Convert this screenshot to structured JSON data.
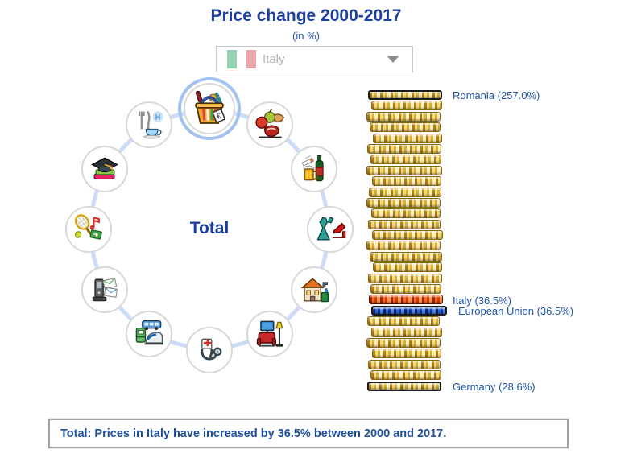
{
  "header": {
    "title": "Price change 2000-2017",
    "subtitle": "(in %)"
  },
  "country_selector": {
    "selected": "Italy",
    "flag_icon": "italy-flag-icon",
    "caret_icon": "chevron-down-icon"
  },
  "category_wheel": {
    "center_label": "Total",
    "selected_category": "total",
    "items": [
      {
        "id": "total",
        "icon": "shopping-basket-icon",
        "selected": true
      },
      {
        "id": "food",
        "icon": "food-icon",
        "selected": false
      },
      {
        "id": "alcohol-tobacco",
        "icon": "alcohol-tobacco-icon",
        "selected": false
      },
      {
        "id": "clothing-footwear",
        "icon": "clothing-icon",
        "selected": false
      },
      {
        "id": "housing-utilities",
        "icon": "housing-icon",
        "selected": false
      },
      {
        "id": "furnishings-household",
        "icon": "furnishings-icon",
        "selected": false
      },
      {
        "id": "health",
        "icon": "health-icon",
        "selected": false
      },
      {
        "id": "transport",
        "icon": "transport-icon",
        "selected": false
      },
      {
        "id": "communication",
        "icon": "communication-icon",
        "selected": false
      },
      {
        "id": "recreation-culture",
        "icon": "recreation-icon",
        "selected": false
      },
      {
        "id": "education",
        "icon": "education-icon",
        "selected": false
      },
      {
        "id": "restaurants-hotels",
        "icon": "restaurants-hotels-icon",
        "selected": false
      }
    ]
  },
  "chart_data": {
    "type": "bar",
    "style": "coin-stack",
    "title": "Price change 2000-2017",
    "subtitle": "(in %)",
    "unit": "%",
    "category": "Total",
    "points": [
      {
        "country": "Romania",
        "value": 257.0,
        "label": "Romania (257.0%)",
        "coin_index": 0,
        "coin_color": "gold-outlined"
      },
      {
        "country": "Italy",
        "value": 36.5,
        "label": "Italy (36.5%)",
        "coin_index": 19,
        "coin_color": "red"
      },
      {
        "country": "European Union",
        "value": 36.5,
        "label": "European Union (36.5%)",
        "coin_index": 20,
        "coin_color": "blue-outlined"
      },
      {
        "country": "Germany",
        "value": 28.6,
        "label": "Germany (28.6%)",
        "coin_index": 27,
        "coin_color": "gold-outlined"
      }
    ],
    "coins": [
      "gold outlined",
      "gold",
      "gold",
      "gold",
      "gold",
      "gold",
      "gold",
      "gold",
      "gold",
      "gold",
      "gold",
      "gold",
      "gold",
      "gold",
      "gold",
      "gold",
      "gold",
      "gold",
      "gold",
      "red",
      "blue outlined",
      "gold",
      "gold",
      "gold",
      "gold",
      "gold",
      "gold",
      "gold outlined"
    ]
  },
  "footer": {
    "summary": "Total: Prices in Italy have increased by 36.5% between 2000 and 2017."
  }
}
